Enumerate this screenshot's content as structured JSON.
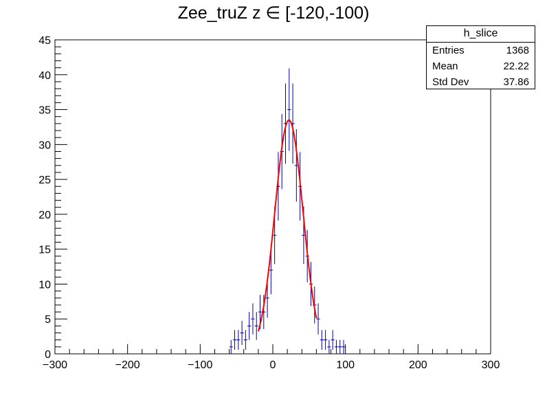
{
  "title": "Zee_truZ z  ∈ [-120,-100)",
  "stats": {
    "name": "h_slice",
    "rows": [
      {
        "label": "Entries",
        "value": "1368"
      },
      {
        "label": "Mean",
        "value": "22.22"
      },
      {
        "label": "Std Dev",
        "value": "37.86"
      }
    ]
  },
  "chart_data": {
    "type": "histogram",
    "title": "Zee_truZ z  ∈ [-120,-100)",
    "xlim": [
      -300,
      300
    ],
    "ylim": [
      0,
      45
    ],
    "x_ticks": [
      -300,
      -200,
      -100,
      0,
      100,
      200,
      300
    ],
    "y_ticks": [
      0,
      5,
      10,
      15,
      20,
      25,
      30,
      35,
      40,
      45
    ],
    "grid": false,
    "legend_position": "top-right",
    "colors": {
      "histogram": "#000099",
      "fit": "#ff0000",
      "axis": "#000000"
    },
    "bin_edges_start": -60,
    "bin_width": 5,
    "bins": [
      {
        "x": -57.5,
        "y": 1
      },
      {
        "x": -52.5,
        "y": 2
      },
      {
        "x": -47.5,
        "y": 2
      },
      {
        "x": -42.5,
        "y": 3
      },
      {
        "x": -37.5,
        "y": 2
      },
      {
        "x": -32.5,
        "y": 4
      },
      {
        "x": -27.5,
        "y": 5
      },
      {
        "x": -22.5,
        "y": 4
      },
      {
        "x": -17.5,
        "y": 6
      },
      {
        "x": -12.5,
        "y": 6
      },
      {
        "x": -7.5,
        "y": 8
      },
      {
        "x": -2.5,
        "y": 12
      },
      {
        "x": 2.5,
        "y": 17
      },
      {
        "x": 7.5,
        "y": 24
      },
      {
        "x": 12.5,
        "y": 29
      },
      {
        "x": 17.5,
        "y": 33
      },
      {
        "x": 22.5,
        "y": 35
      },
      {
        "x": 27.5,
        "y": 33
      },
      {
        "x": 32.5,
        "y": 27
      },
      {
        "x": 37.5,
        "y": 24
      },
      {
        "x": 42.5,
        "y": 17
      },
      {
        "x": 47.5,
        "y": 14
      },
      {
        "x": 52.5,
        "y": 10
      },
      {
        "x": 57.5,
        "y": 7
      },
      {
        "x": 62.5,
        "y": 5
      },
      {
        "x": 67.5,
        "y": 2
      },
      {
        "x": 72.5,
        "y": 2
      },
      {
        "x": 77.5,
        "y": 1
      },
      {
        "x": 82.5,
        "y": 2
      },
      {
        "x": 87.5,
        "y": 1
      },
      {
        "x": 92.5,
        "y": 1
      },
      {
        "x": 97.5,
        "y": 1
      }
    ],
    "fit": {
      "function": "gaus",
      "constant": 33.5,
      "mean": 22.2,
      "sigma": 19.5,
      "x_range": [
        -20,
        60
      ]
    }
  }
}
